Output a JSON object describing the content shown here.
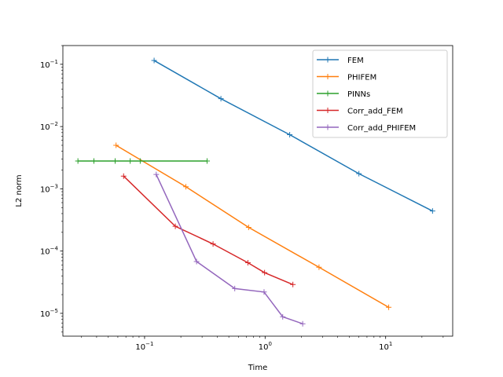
{
  "chart_data": {
    "type": "line",
    "title": "",
    "xlabel": "Time",
    "ylabel": "L2 norm",
    "xscale": "log",
    "yscale": "log",
    "xlim": [
      0.021,
      36
    ],
    "ylim": [
      4.3e-06,
      0.2
    ],
    "grid": false,
    "legend_position": "top-right",
    "x_ticks": [
      {
        "value": 0.1,
        "mantissa": "10",
        "exp": "−1"
      },
      {
        "value": 1,
        "mantissa": "10",
        "exp": "0"
      },
      {
        "value": 10,
        "mantissa": "10",
        "exp": "1"
      }
    ],
    "y_ticks": [
      {
        "value": 1e-05,
        "mantissa": "10",
        "exp": "−5"
      },
      {
        "value": 0.0001,
        "mantissa": "10",
        "exp": "−4"
      },
      {
        "value": 0.001,
        "mantissa": "10",
        "exp": "−3"
      },
      {
        "value": 0.01,
        "mantissa": "10",
        "exp": "−2"
      },
      {
        "value": 0.1,
        "mantissa": "10",
        "exp": "−1"
      }
    ],
    "series": [
      {
        "name": "FEM",
        "color": "#1f77b4",
        "x": [
          0.12,
          0.43,
          1.6,
          6.0,
          24.5
        ],
        "y": [
          0.115,
          0.028,
          0.0074,
          0.00175,
          0.00044
        ]
      },
      {
        "name": "PHIFEM",
        "color": "#ff7f0e",
        "x": [
          0.058,
          0.22,
          0.73,
          2.8,
          10.6
        ],
        "y": [
          0.005,
          0.00108,
          0.00024,
          5.5e-05,
          1.25e-05
        ]
      },
      {
        "name": "PINNs",
        "color": "#2ca02c",
        "x": [
          0.028,
          0.038,
          0.057,
          0.076,
          0.092,
          0.33
        ],
        "y": [
          0.0028,
          0.0028,
          0.0028,
          0.0028,
          0.0028,
          0.0028
        ]
      },
      {
        "name": "Corr_add_FEM",
        "color": "#d62728",
        "x": [
          0.067,
          0.18,
          0.37,
          0.72,
          0.99,
          1.7
        ],
        "y": [
          0.0016,
          0.00025,
          0.00013,
          6.5e-05,
          4.5e-05,
          2.9e-05
        ]
      },
      {
        "name": "Corr_add_PHIFEM",
        "color": "#9467bd",
        "x": [
          0.125,
          0.27,
          0.56,
          0.98,
          1.4,
          2.05
        ],
        "y": [
          0.0017,
          6.8e-05,
          2.5e-05,
          2.2e-05,
          8.8e-06,
          6.8e-06
        ]
      }
    ]
  }
}
